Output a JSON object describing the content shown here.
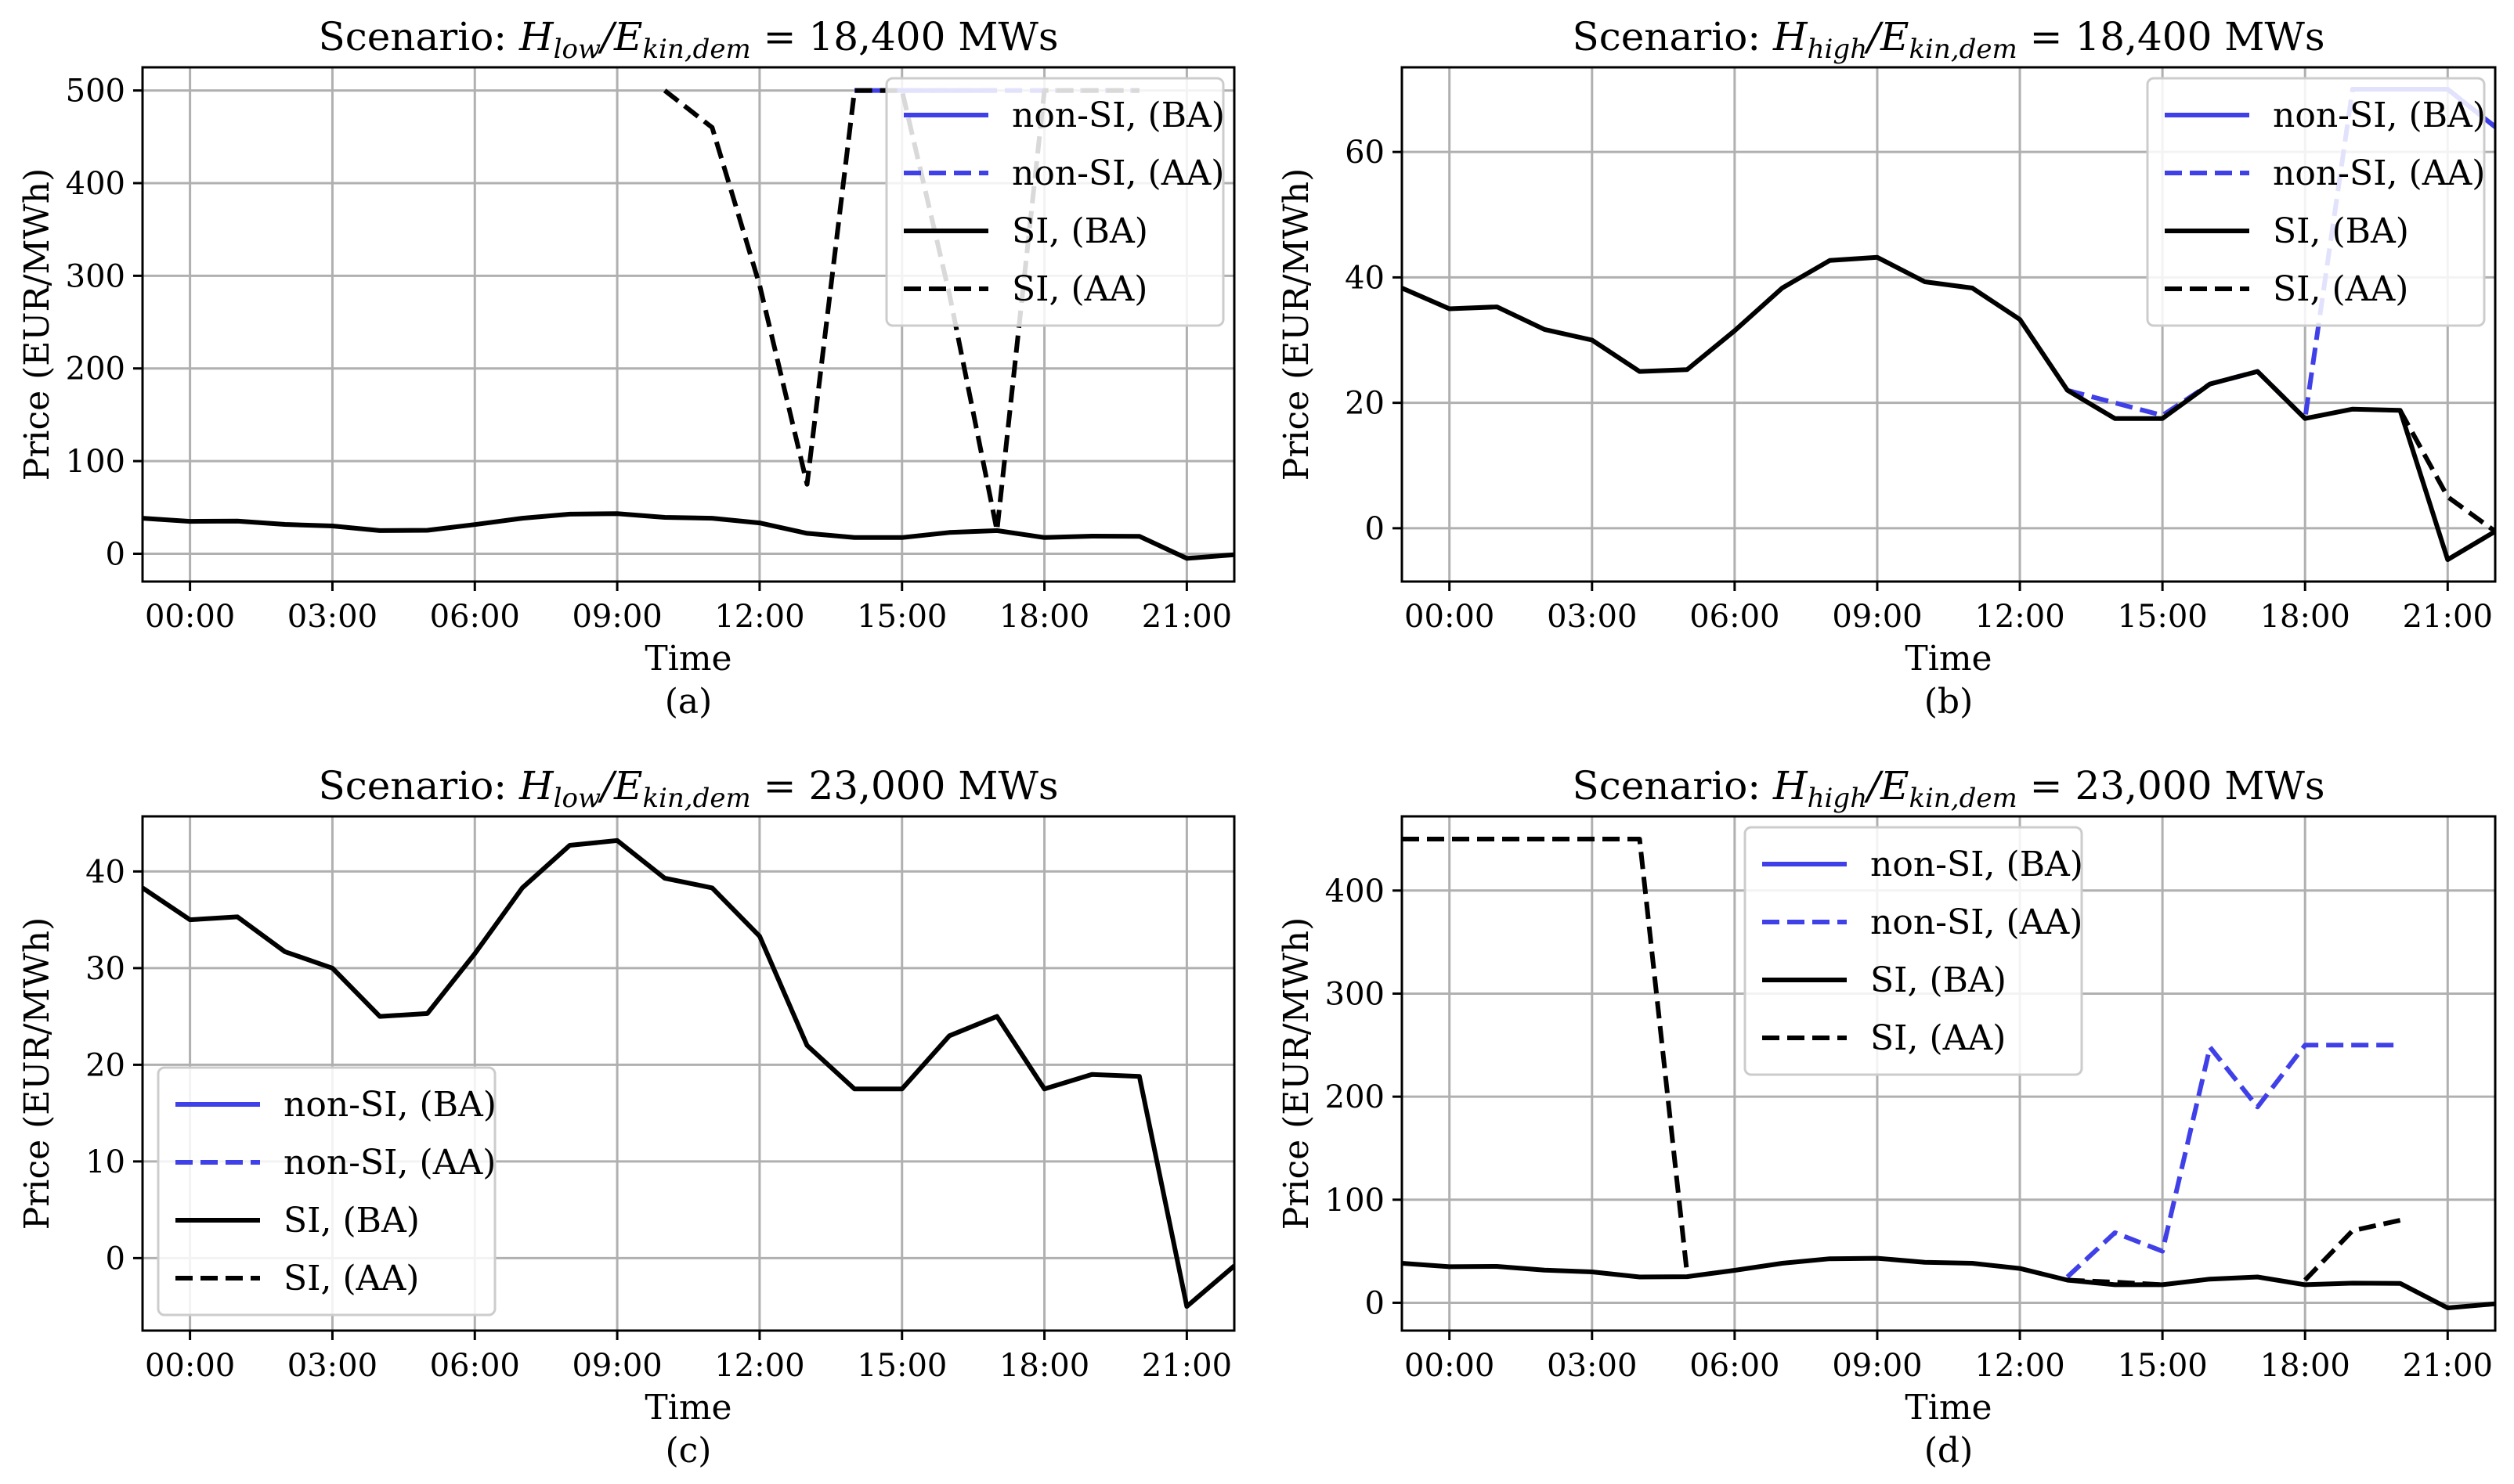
{
  "colors": {
    "non_si": "#4040e8",
    "si": "#000000"
  },
  "legend_labels": [
    "non-SI, (BA)",
    "non-SI, (AA)",
    "SI, (BA)",
    "SI, (AA)"
  ],
  "chart_data": [
    {
      "type": "line",
      "panel_label": "(a)",
      "title_prefix": "Scenario:",
      "title_h": "H",
      "title_h_sub": "low",
      "title_e": "/E",
      "title_e_sub": "kin,dem",
      "title_suffix": " = 18,400 MWs",
      "xlabel": "Time",
      "ylabel": "Price (EUR/MWh)",
      "x_ticks": [
        0,
        3,
        6,
        9,
        12,
        15,
        18,
        21
      ],
      "x_tick_labels": [
        "00:00",
        "03:00",
        "06:00",
        "09:00",
        "12:00",
        "15:00",
        "18:00",
        "21:00"
      ],
      "xlim": [
        -1,
        22
      ],
      "ylim": [
        -30,
        525
      ],
      "y_ticks": [
        0,
        100,
        200,
        300,
        400,
        500
      ],
      "legend_loc": "upper-right",
      "series": [
        {
          "name": "non-SI, (BA)",
          "style": "solid",
          "color": "non_si",
          "x": [
            14,
            15,
            16,
            17
          ],
          "y": [
            500,
            500,
            500,
            500
          ]
        },
        {
          "name": "non-SI, (AA)",
          "style": "dashed",
          "color": "non_si",
          "x": [
            14,
            15,
            16,
            17,
            18,
            19,
            20
          ],
          "y": [
            500,
            500,
            500,
            500,
            500,
            500,
            500
          ]
        },
        {
          "name": "SI, (BA)",
          "style": "solid",
          "color": "si",
          "x": [
            -1,
            0,
            1,
            2,
            3,
            4,
            5,
            6,
            7,
            8,
            9,
            10,
            11,
            12,
            13,
            14,
            15,
            16,
            17,
            18,
            19,
            20,
            21,
            22
          ],
          "y": [
            38.3,
            35,
            35.3,
            31.7,
            30,
            25,
            25.3,
            31.5,
            38.3,
            42.7,
            43.2,
            39.3,
            38.3,
            33.3,
            22,
            17.5,
            17.5,
            23,
            25,
            17.5,
            19,
            18.8,
            -5,
            -1
          ]
        },
        {
          "name": "SI, (AA)",
          "style": "dashed",
          "color": "si",
          "x": [
            10,
            11,
            12,
            13,
            14,
            15,
            16,
            17,
            18,
            19,
            20
          ],
          "y": [
            500,
            460,
            290,
            75,
            500,
            500,
            280,
            25,
            500,
            500,
            500
          ]
        }
      ]
    },
    {
      "type": "line",
      "panel_label": "(b)",
      "title_prefix": "Scenario:",
      "title_h": "H",
      "title_h_sub": "high",
      "title_e": "/E",
      "title_e_sub": "kin,dem",
      "title_suffix": " = 18,400 MWs",
      "xlabel": "Time",
      "ylabel": "Price (EUR/MWh)",
      "x_ticks": [
        0,
        3,
        6,
        9,
        12,
        15,
        18,
        21
      ],
      "x_tick_labels": [
        "00:00",
        "03:00",
        "06:00",
        "09:00",
        "12:00",
        "15:00",
        "18:00",
        "21:00"
      ],
      "xlim": [
        -1,
        22
      ],
      "ylim": [
        -8.5,
        73.5
      ],
      "y_ticks": [
        0,
        20,
        40,
        60
      ],
      "legend_loc": "upper-right",
      "series": [
        {
          "name": "non-SI, (BA)",
          "style": "solid",
          "color": "non_si",
          "x": [
            19,
            20,
            21,
            22
          ],
          "y": [
            70,
            70,
            70,
            64
          ]
        },
        {
          "name": "non-SI, (AA)",
          "style": "dashed",
          "color": "non_si",
          "x": [
            13,
            14,
            15,
            16,
            17,
            18,
            19,
            20,
            21,
            22
          ],
          "y": [
            22,
            20,
            18,
            23,
            25,
            17.5,
            70,
            70,
            70,
            64
          ]
        },
        {
          "name": "SI, (BA)",
          "style": "solid",
          "color": "si",
          "x": [
            -1,
            0,
            1,
            2,
            3,
            4,
            5,
            6,
            7,
            8,
            9,
            10,
            11,
            12,
            13,
            14,
            15,
            16,
            17,
            18,
            19,
            20,
            21,
            22
          ],
          "y": [
            38.3,
            35,
            35.3,
            31.7,
            30,
            25,
            25.3,
            31.5,
            38.3,
            42.7,
            43.2,
            39.3,
            38.3,
            33.3,
            22,
            17.5,
            17.5,
            23,
            25,
            17.5,
            19,
            18.8,
            -5,
            -0.5
          ]
        },
        {
          "name": "SI, (AA)",
          "style": "dashed",
          "color": "si",
          "x": [
            20,
            21,
            22
          ],
          "y": [
            18.8,
            5,
            -0.5
          ]
        }
      ]
    },
    {
      "type": "line",
      "panel_label": "(c)",
      "title_prefix": "Scenario:",
      "title_h": "H",
      "title_h_sub": "low",
      "title_e": "/E",
      "title_e_sub": "kin,dem",
      "title_suffix": " = 23,000 MWs",
      "xlabel": "Time",
      "ylabel": "Price (EUR/MWh)",
      "x_ticks": [
        0,
        3,
        6,
        9,
        12,
        15,
        18,
        21
      ],
      "x_tick_labels": [
        "00:00",
        "03:00",
        "06:00",
        "09:00",
        "12:00",
        "15:00",
        "18:00",
        "21:00"
      ],
      "xlim": [
        -1,
        22
      ],
      "ylim": [
        -7.5,
        45.7
      ],
      "y_ticks": [
        0,
        10,
        20,
        30,
        40
      ],
      "legend_loc": "lower-left",
      "series": [
        {
          "name": "non-SI, (BA)",
          "style": "solid",
          "color": "non_si",
          "x": [],
          "y": []
        },
        {
          "name": "non-SI, (AA)",
          "style": "dashed",
          "color": "non_si",
          "x": [],
          "y": []
        },
        {
          "name": "SI, (BA)",
          "style": "solid",
          "color": "si",
          "x": [
            -1,
            0,
            1,
            2,
            3,
            4,
            5,
            6,
            7,
            8,
            9,
            10,
            11,
            12,
            13,
            14,
            15,
            16,
            17,
            18,
            19,
            20,
            21,
            22
          ],
          "y": [
            38.3,
            35,
            35.3,
            31.7,
            30,
            25,
            25.3,
            31.5,
            38.3,
            42.7,
            43.2,
            39.3,
            38.3,
            33.3,
            22,
            17.5,
            17.5,
            23,
            25,
            17.5,
            19,
            18.8,
            -5,
            -0.8
          ]
        },
        {
          "name": "SI, (AA)",
          "style": "dashed",
          "color": "si",
          "x": [],
          "y": []
        }
      ]
    },
    {
      "type": "line",
      "panel_label": "(d)",
      "title_prefix": "Scenario:",
      "title_h": "H",
      "title_h_sub": "high",
      "title_e": "/E",
      "title_e_sub": "kin,dem",
      "title_suffix": " = 23,000 MWs",
      "xlabel": "Time",
      "ylabel": "Price (EUR/MWh)",
      "x_ticks": [
        0,
        3,
        6,
        9,
        12,
        15,
        18,
        21
      ],
      "x_tick_labels": [
        "00:00",
        "03:00",
        "06:00",
        "09:00",
        "12:00",
        "15:00",
        "18:00",
        "21:00"
      ],
      "xlim": [
        -1,
        22
      ],
      "ylim": [
        -27,
        472
      ],
      "y_ticks": [
        0,
        100,
        200,
        300,
        400
      ],
      "legend_loc": "upper-center",
      "series": [
        {
          "name": "non-SI, (BA)",
          "style": "solid",
          "color": "non_si",
          "x": [],
          "y": []
        },
        {
          "name": "non-SI, (AA)",
          "style": "dashed",
          "color": "non_si",
          "x": [
            13,
            14,
            15,
            16,
            17,
            18,
            19,
            20
          ],
          "y": [
            25,
            68,
            50,
            248,
            190,
            250,
            250,
            250
          ]
        },
        {
          "name": "SI, (BA)",
          "style": "solid",
          "color": "si",
          "x": [
            -1,
            0,
            1,
            2,
            3,
            4,
            5,
            6,
            7,
            8,
            9,
            10,
            11,
            12,
            13,
            14,
            15,
            16,
            17,
            18,
            19,
            20,
            21,
            22
          ],
          "y": [
            38.3,
            35,
            35.3,
            31.7,
            30,
            25,
            25.3,
            31.5,
            38.3,
            42.7,
            43.2,
            39.3,
            38.3,
            33.3,
            22,
            17.5,
            17.5,
            23,
            25,
            17.5,
            19,
            18.8,
            -5,
            -1
          ]
        },
        {
          "name": "SI, (AA)",
          "style": "dashed",
          "color": "si",
          "x": [
            -1,
            0,
            1,
            2,
            3,
            4,
            5
          ],
          "y": [
            450,
            450,
            450,
            450,
            450,
            450,
            28
          ]
        },
        {
          "name": "SI, (AA)",
          "style": "dashed",
          "color": "si",
          "legend": false,
          "x": [
            13,
            14,
            15
          ],
          "y": [
            22,
            20,
            17.5
          ]
        },
        {
          "name": "SI, (AA)",
          "style": "dashed",
          "color": "si",
          "legend": false,
          "x": [
            18,
            19,
            20
          ],
          "y": [
            22,
            70,
            80
          ]
        }
      ]
    }
  ]
}
